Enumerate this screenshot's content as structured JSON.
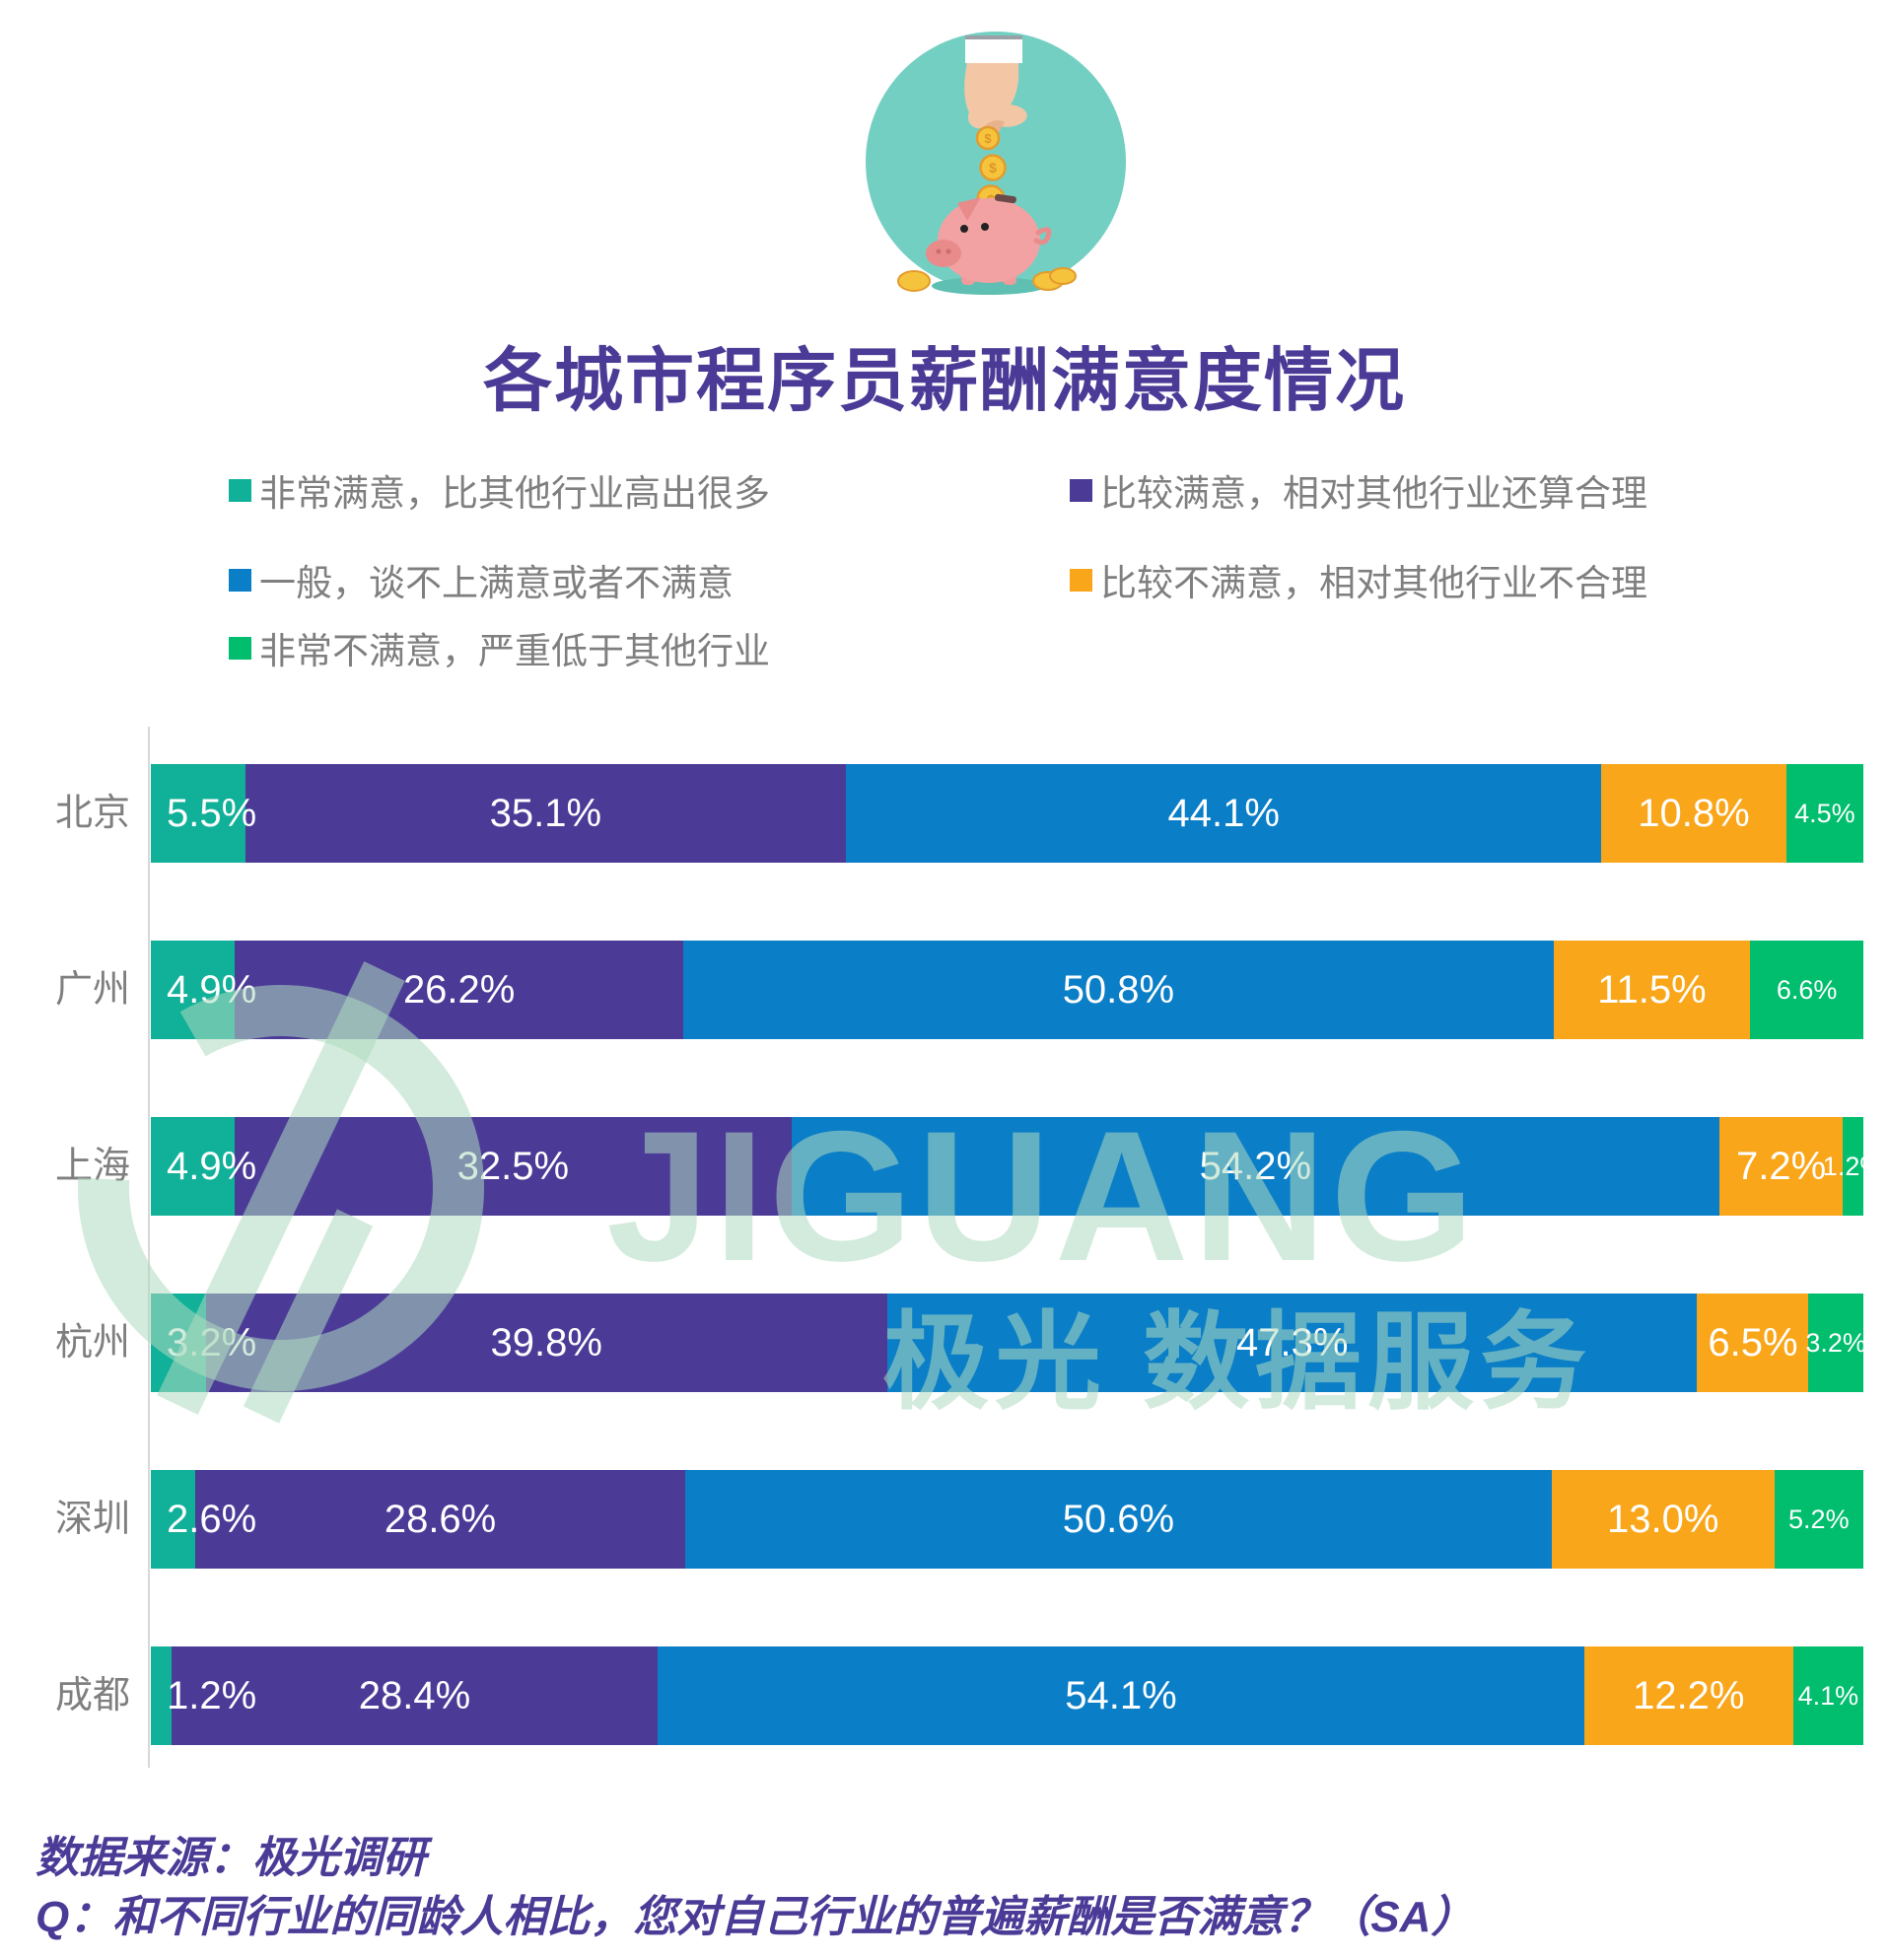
{
  "title": "各城市程序员薪酬满意度情况",
  "header_icon": "piggy-bank-savings-icon",
  "legend": [
    {
      "label": "非常满意，比其他行业高出很多",
      "color": "#10B099"
    },
    {
      "label": "比较满意，相对其他行业还算合理",
      "color": "#4B3B97"
    },
    {
      "label": "一般，谈不上满意或者不满意",
      "color": "#0A7EC7"
    },
    {
      "label": "比较不满意，相对其他行业不合理",
      "color": "#F9A61A"
    },
    {
      "label": "非常不满意，严重低于其他行业",
      "color": "#00BE6E"
    }
  ],
  "chart_data": {
    "type": "bar",
    "orientation": "horizontal-stacked",
    "title": "各城市程序员薪酬满意度情况",
    "categories": [
      "北京",
      "广州",
      "上海",
      "杭州",
      "深圳",
      "成都"
    ],
    "series": [
      {
        "name": "非常满意，比其他行业高出很多",
        "color": "#10B099",
        "values": [
          5.5,
          4.9,
          4.9,
          3.2,
          2.6,
          1.2
        ]
      },
      {
        "name": "比较满意，相对其他行业还算合理",
        "color": "#4B3B97",
        "values": [
          35.1,
          26.2,
          32.5,
          39.8,
          28.6,
          28.4
        ]
      },
      {
        "name": "一般，谈不上满意或者不满意",
        "color": "#0A7EC7",
        "values": [
          44.1,
          50.8,
          54.2,
          47.3,
          50.6,
          54.1
        ]
      },
      {
        "name": "比较不满意，相对其他行业不合理",
        "color": "#F9A61A",
        "values": [
          10.8,
          11.5,
          7.2,
          6.5,
          13.0,
          12.2
        ]
      },
      {
        "name": "非常不满意，严重低于其他行业",
        "color": "#00BE6E",
        "values": [
          4.5,
          6.6,
          1.2,
          3.2,
          5.2,
          4.1
        ]
      }
    ],
    "value_suffix": "%",
    "xlim": [
      0,
      100
    ],
    "legend_position": "top",
    "grid": false
  },
  "watermark": {
    "brand": "JIGUANG",
    "cn": "极光 数据服务"
  },
  "footer": {
    "source": "数据来源：极光调研",
    "question": "Q：和不同行业的同龄人相比，您对自己行业的普遍薪酬是否满意？（SA）"
  }
}
